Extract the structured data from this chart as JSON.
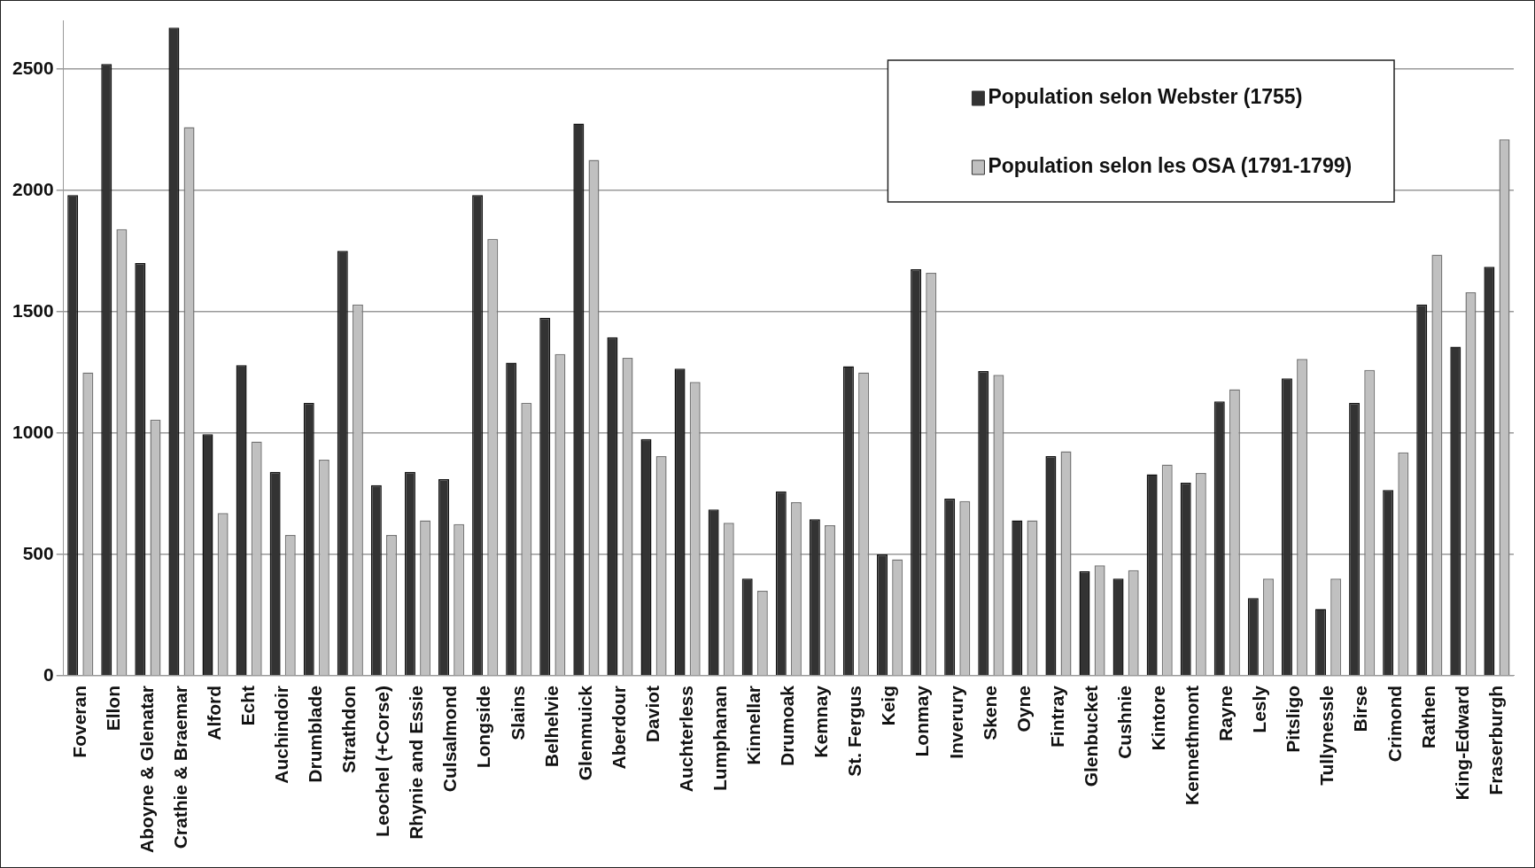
{
  "chart_data": {
    "type": "bar",
    "categories": [
      "Foveran",
      "Ellon",
      "Aboyne & Glenatar",
      "Crathie & Braemar",
      "Alford",
      "Echt",
      "Auchindoir",
      "Drumblade",
      "Strathdon",
      "Leochel (+Corse)",
      "Rhynie and Essie",
      "Culsalmond",
      "Longside",
      "Slains",
      "Belhelvie",
      "Glenmuick",
      "Aberdour",
      "Daviot",
      "Auchterless",
      "Lumphanan",
      "Kinnellar",
      "Drumoak",
      "Kemnay",
      "St. Fergus",
      "Keig",
      "Lonmay",
      "Inverury",
      "Skene",
      "Oyne",
      "Fintray",
      "Glenbucket",
      "Cushnie",
      "Kintore",
      "Kennethmont",
      "Rayne",
      "Lesly",
      "Pitsligo",
      "Tullynessle",
      "Birse",
      "Crimond",
      "Rathen",
      "King-Edward",
      "Fraserburgh"
    ],
    "series": [
      {
        "name": "Population selon Webster (1755)",
        "color": "#333333",
        "values": [
          1980,
          2520,
          1700,
          2670,
          995,
          1280,
          840,
          1125,
          1750,
          785,
          840,
          810,
          1980,
          1290,
          1475,
          2275,
          1395,
          975,
          1265,
          685,
          400,
          760,
          645,
          1275,
          500,
          1675,
          730,
          1255,
          640,
          905,
          430,
          400,
          830,
          795,
          1130,
          320,
          1225,
          275,
          1125,
          765,
          1530,
          1355,
          1685
        ]
      },
      {
        "name": "Population selon les OSA (1791-1799)",
        "color": "#c0c0c0",
        "values": [
          1250,
          1840,
          1055,
          2260,
          670,
          965,
          580,
          890,
          1530,
          580,
          640,
          625,
          1800,
          1125,
          1325,
          2125,
          1310,
          905,
          1210,
          630,
          350,
          715,
          620,
          1250,
          480,
          1660,
          720,
          1240,
          640,
          925,
          455,
          435,
          870,
          835,
          1180,
          400,
          1305,
          400,
          1260,
          920,
          1735,
          1580,
          2210
        ]
      }
    ],
    "ylim": [
      0,
      2700
    ],
    "yticks": [
      0,
      500,
      1000,
      1500,
      2000,
      2500
    ],
    "grid": "y",
    "legend": "top right"
  }
}
